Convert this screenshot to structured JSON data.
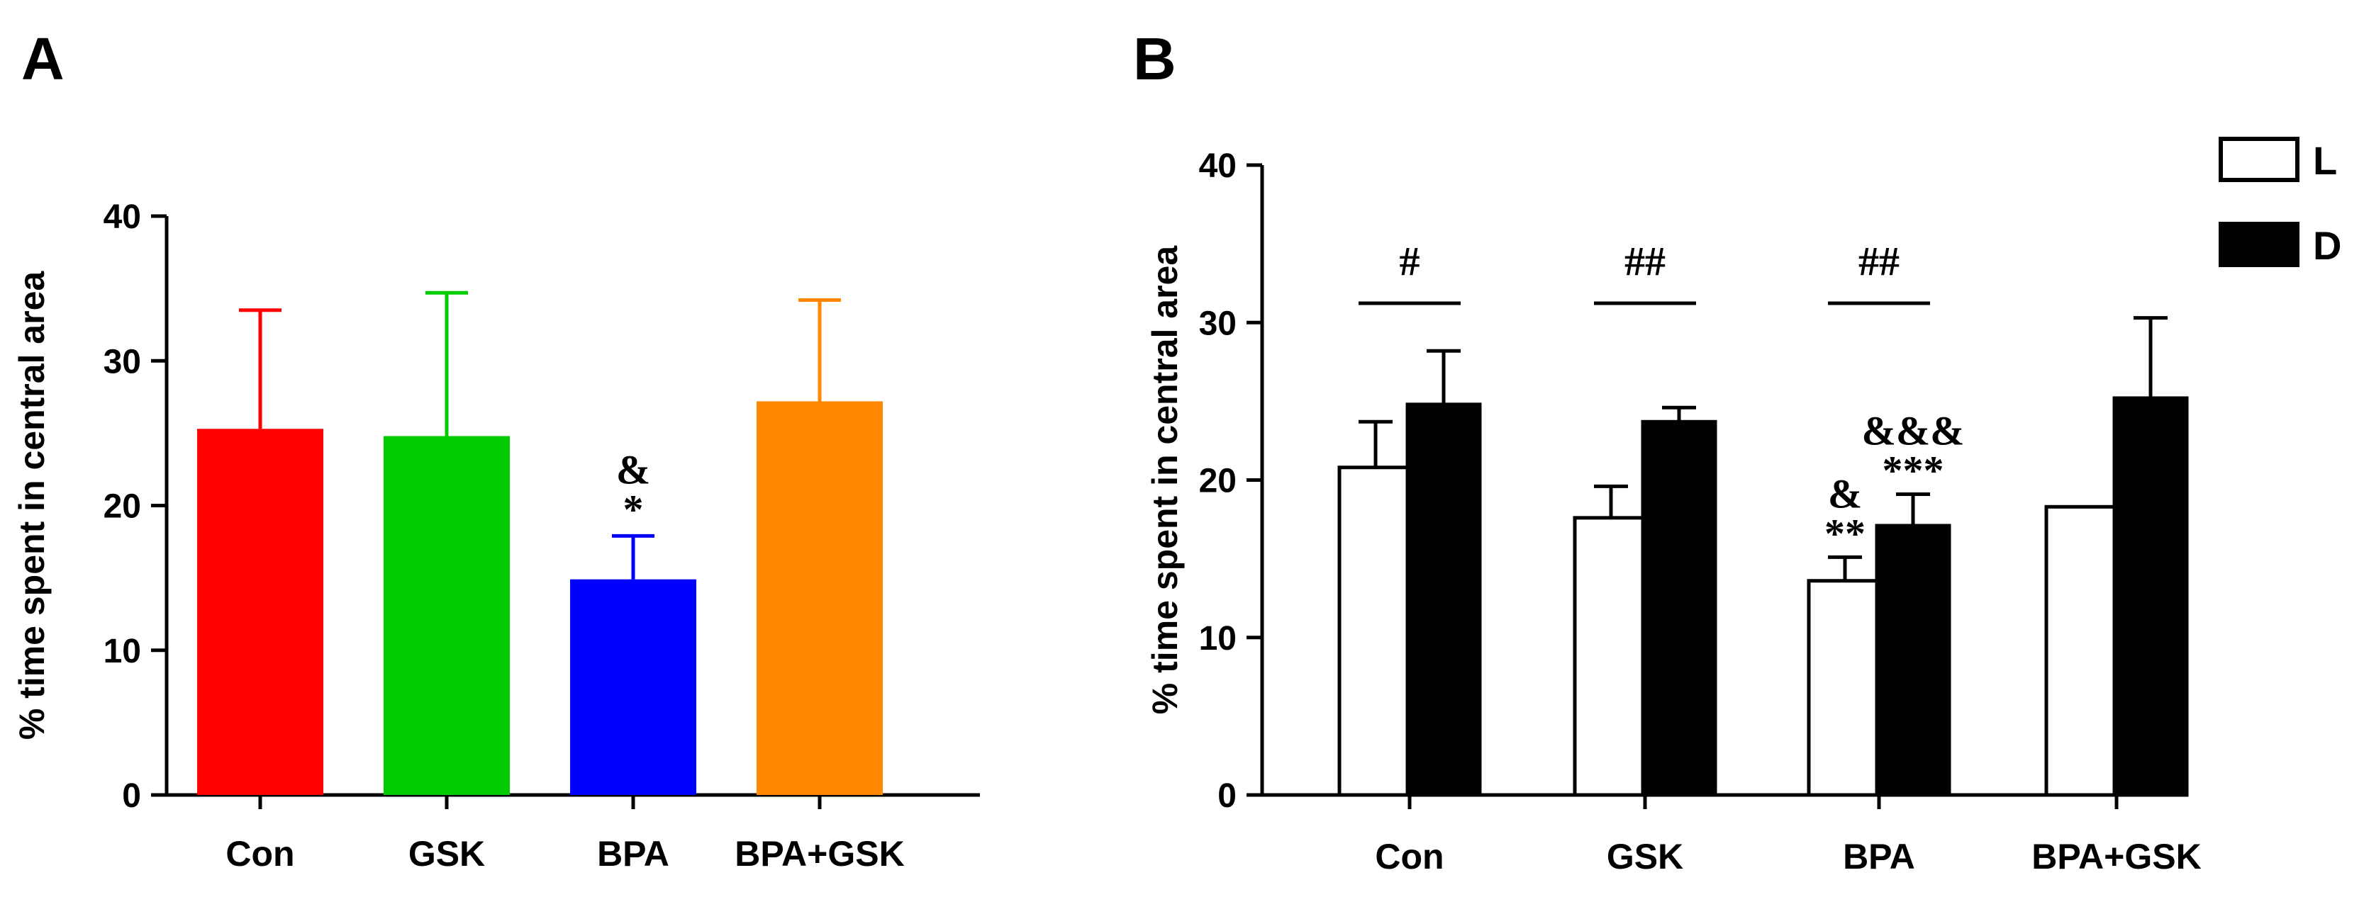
{
  "chart_data": [
    {
      "panel": "A",
      "type": "bar",
      "ylabel": "% time spent in central area",
      "xlabel": "",
      "ylim": [
        0,
        40
      ],
      "yticks": [
        0,
        10,
        20,
        30,
        40
      ],
      "categories": [
        "Con",
        "GSK",
        "BPA",
        "BPA+GSK"
      ],
      "values": [
        25.3,
        24.8,
        14.9,
        27.2
      ],
      "errors": [
        8.2,
        9.9,
        3.0,
        7.0
      ],
      "colors": [
        "#ff0000",
        "#00cc00",
        "#0000ff",
        "#ff8800"
      ],
      "annotations": [
        {
          "category": "BPA",
          "lines": [
            "&",
            "*"
          ]
        }
      ]
    },
    {
      "panel": "B",
      "type": "bar",
      "ylabel": "% time spent in central area",
      "xlabel": "",
      "ylim": [
        0,
        40
      ],
      "yticks": [
        0,
        10,
        20,
        30,
        40
      ],
      "categories": [
        "Con",
        "GSK",
        "BPA",
        "BPA+GSK"
      ],
      "series": [
        {
          "name": "L",
          "fill": "#ffffff",
          "values": [
            20.8,
            17.6,
            13.6,
            18.3
          ],
          "errors": [
            2.9,
            2.0,
            1.5,
            0
          ]
        },
        {
          "name": "D",
          "fill": "#000000",
          "values": [
            24.8,
            23.7,
            17.1,
            25.2
          ],
          "errors": [
            3.4,
            0.9,
            2.0,
            5.1
          ]
        }
      ],
      "legend": [
        "L",
        "D"
      ],
      "comparisons": [
        {
          "category": "Con",
          "label": "#"
        },
        {
          "category": "GSK",
          "label": "##"
        },
        {
          "category": "BPA",
          "label": "##"
        }
      ],
      "annotations": [
        {
          "category": "BPA",
          "series": "L",
          "lines": [
            "&",
            "**"
          ]
        },
        {
          "category": "BPA",
          "series": "D",
          "lines": [
            "&&&",
            "***"
          ]
        }
      ]
    }
  ]
}
